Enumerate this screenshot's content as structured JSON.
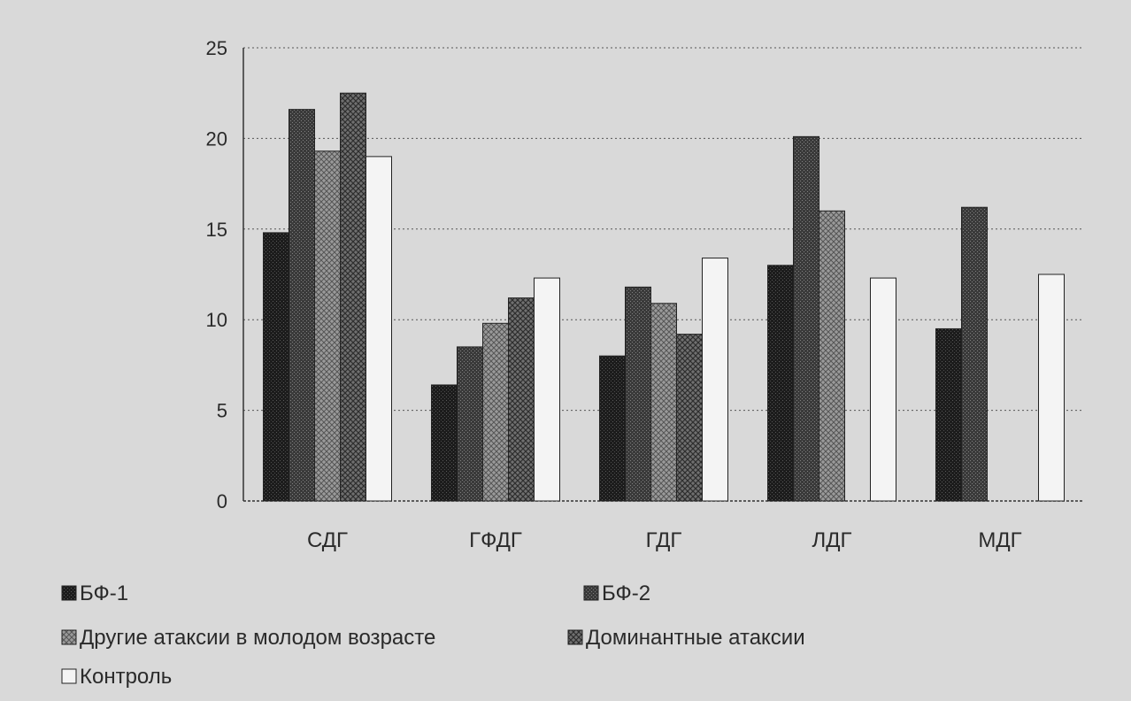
{
  "chart_data": {
    "type": "bar",
    "title": "",
    "xlabel": "",
    "ylabel": "",
    "categories": [
      "СДГ",
      "ГФДГ",
      "ГДГ",
      "ЛДГ",
      "МДГ"
    ],
    "ylim": [
      0,
      25
    ],
    "yticks": [
      0,
      5,
      10,
      15,
      20,
      25
    ],
    "grid": true,
    "legend_position": "bottom",
    "series": [
      {
        "name": "БФ-1",
        "values": [
          14.8,
          6.4,
          8.0,
          13.0,
          9.5
        ]
      },
      {
        "name": "БФ-2",
        "values": [
          21.6,
          8.5,
          11.8,
          20.1,
          16.2
        ]
      },
      {
        "name": "Другие атаксии в молодом возрасте",
        "values": [
          19.3,
          9.8,
          10.9,
          16.0,
          null
        ]
      },
      {
        "name": "Доминантные атаксии",
        "values": [
          22.5,
          11.2,
          9.2,
          null,
          null
        ]
      },
      {
        "name": "Контроль",
        "values": [
          19.0,
          12.3,
          13.4,
          12.3,
          12.5
        ]
      }
    ],
    "colors": [
      "#202020",
      "#404040",
      "#8e8e8e",
      "#6a6a6a",
      "#f4f4f4"
    ]
  }
}
